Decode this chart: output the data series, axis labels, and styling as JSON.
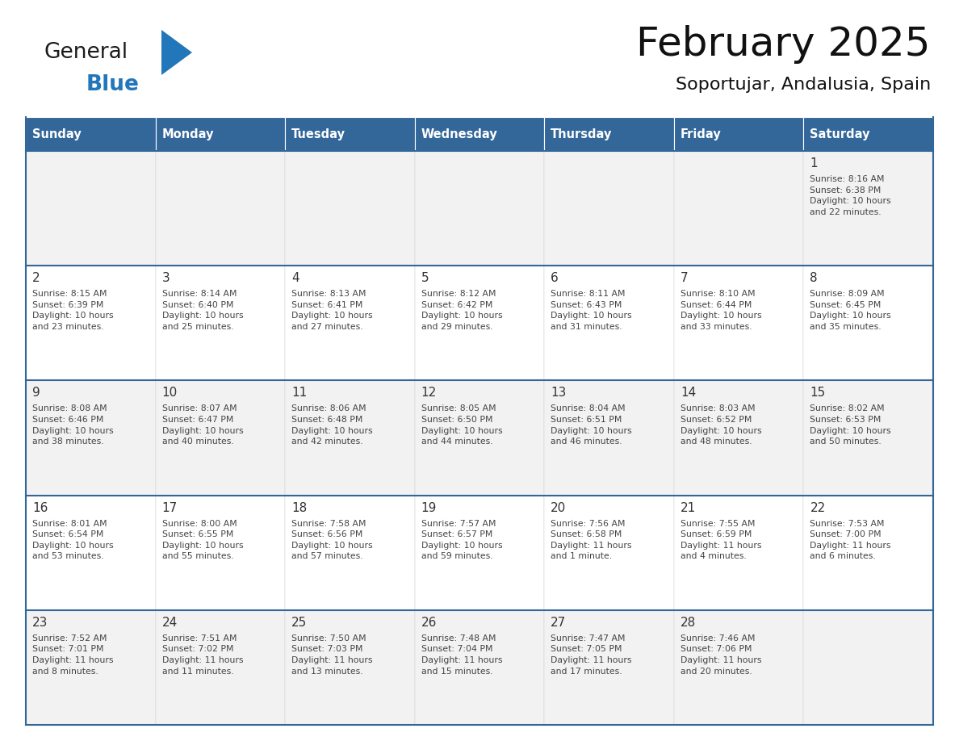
{
  "title": "February 2025",
  "subtitle": "Soportujar, Andalusia, Spain",
  "header_bg": "#336699",
  "header_text": "#ffffff",
  "day_names": [
    "Sunday",
    "Monday",
    "Tuesday",
    "Wednesday",
    "Thursday",
    "Friday",
    "Saturday"
  ],
  "cell_bg_white": "#ffffff",
  "cell_bg_gray": "#f2f2f2",
  "divider_color": "#336699",
  "day_number_color": "#333333",
  "text_color": "#444444",
  "logo_general_color": "#1a1a1a",
  "logo_blue_color": "#2277bb",
  "calendar": [
    [
      null,
      null,
      null,
      null,
      null,
      null,
      {
        "day": "1",
        "sunrise": "8:16 AM",
        "sunset": "6:38 PM",
        "daylight": "10 hours\nand 22 minutes."
      }
    ],
    [
      {
        "day": "2",
        "sunrise": "8:15 AM",
        "sunset": "6:39 PM",
        "daylight": "10 hours\nand 23 minutes."
      },
      {
        "day": "3",
        "sunrise": "8:14 AM",
        "sunset": "6:40 PM",
        "daylight": "10 hours\nand 25 minutes."
      },
      {
        "day": "4",
        "sunrise": "8:13 AM",
        "sunset": "6:41 PM",
        "daylight": "10 hours\nand 27 minutes."
      },
      {
        "day": "5",
        "sunrise": "8:12 AM",
        "sunset": "6:42 PM",
        "daylight": "10 hours\nand 29 minutes."
      },
      {
        "day": "6",
        "sunrise": "8:11 AM",
        "sunset": "6:43 PM",
        "daylight": "10 hours\nand 31 minutes."
      },
      {
        "day": "7",
        "sunrise": "8:10 AM",
        "sunset": "6:44 PM",
        "daylight": "10 hours\nand 33 minutes."
      },
      {
        "day": "8",
        "sunrise": "8:09 AM",
        "sunset": "6:45 PM",
        "daylight": "10 hours\nand 35 minutes."
      }
    ],
    [
      {
        "day": "9",
        "sunrise": "8:08 AM",
        "sunset": "6:46 PM",
        "daylight": "10 hours\nand 38 minutes."
      },
      {
        "day": "10",
        "sunrise": "8:07 AM",
        "sunset": "6:47 PM",
        "daylight": "10 hours\nand 40 minutes."
      },
      {
        "day": "11",
        "sunrise": "8:06 AM",
        "sunset": "6:48 PM",
        "daylight": "10 hours\nand 42 minutes."
      },
      {
        "day": "12",
        "sunrise": "8:05 AM",
        "sunset": "6:50 PM",
        "daylight": "10 hours\nand 44 minutes."
      },
      {
        "day": "13",
        "sunrise": "8:04 AM",
        "sunset": "6:51 PM",
        "daylight": "10 hours\nand 46 minutes."
      },
      {
        "day": "14",
        "sunrise": "8:03 AM",
        "sunset": "6:52 PM",
        "daylight": "10 hours\nand 48 minutes."
      },
      {
        "day": "15",
        "sunrise": "8:02 AM",
        "sunset": "6:53 PM",
        "daylight": "10 hours\nand 50 minutes."
      }
    ],
    [
      {
        "day": "16",
        "sunrise": "8:01 AM",
        "sunset": "6:54 PM",
        "daylight": "10 hours\nand 53 minutes."
      },
      {
        "day": "17",
        "sunrise": "8:00 AM",
        "sunset": "6:55 PM",
        "daylight": "10 hours\nand 55 minutes."
      },
      {
        "day": "18",
        "sunrise": "7:58 AM",
        "sunset": "6:56 PM",
        "daylight": "10 hours\nand 57 minutes."
      },
      {
        "day": "19",
        "sunrise": "7:57 AM",
        "sunset": "6:57 PM",
        "daylight": "10 hours\nand 59 minutes."
      },
      {
        "day": "20",
        "sunrise": "7:56 AM",
        "sunset": "6:58 PM",
        "daylight": "11 hours\nand 1 minute."
      },
      {
        "day": "21",
        "sunrise": "7:55 AM",
        "sunset": "6:59 PM",
        "daylight": "11 hours\nand 4 minutes."
      },
      {
        "day": "22",
        "sunrise": "7:53 AM",
        "sunset": "7:00 PM",
        "daylight": "11 hours\nand 6 minutes."
      }
    ],
    [
      {
        "day": "23",
        "sunrise": "7:52 AM",
        "sunset": "7:01 PM",
        "daylight": "11 hours\nand 8 minutes."
      },
      {
        "day": "24",
        "sunrise": "7:51 AM",
        "sunset": "7:02 PM",
        "daylight": "11 hours\nand 11 minutes."
      },
      {
        "day": "25",
        "sunrise": "7:50 AM",
        "sunset": "7:03 PM",
        "daylight": "11 hours\nand 13 minutes."
      },
      {
        "day": "26",
        "sunrise": "7:48 AM",
        "sunset": "7:04 PM",
        "daylight": "11 hours\nand 15 minutes."
      },
      {
        "day": "27",
        "sunrise": "7:47 AM",
        "sunset": "7:05 PM",
        "daylight": "11 hours\nand 17 minutes."
      },
      {
        "day": "28",
        "sunrise": "7:46 AM",
        "sunset": "7:06 PM",
        "daylight": "11 hours\nand 20 minutes."
      },
      null
    ]
  ]
}
